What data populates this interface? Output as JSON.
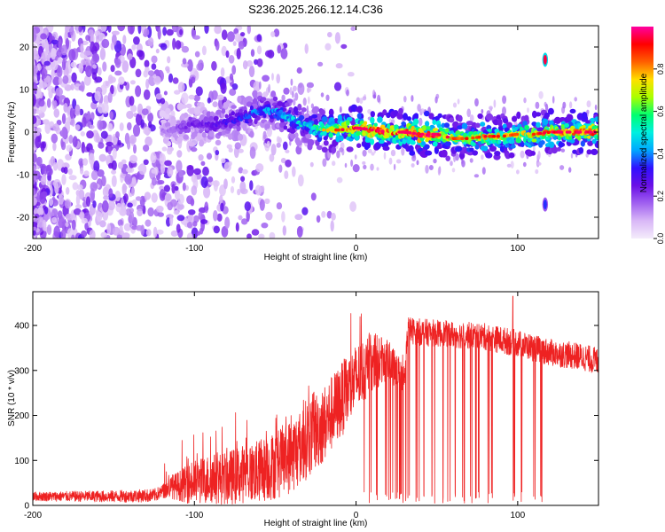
{
  "title": "S236.2025.266.12.14.C36",
  "colors": {
    "snr_line": "#ee2222",
    "colormap": [
      "#f4ecfb",
      "#d9b8f7",
      "#a060f0",
      "#6a10e6",
      "#3010ff",
      "#00a8ff",
      "#00f0e0",
      "#00ff70",
      "#aaff00",
      "#ffe000",
      "#ff6000",
      "#ff0000",
      "#ff00a0"
    ]
  },
  "chart_data": [
    {
      "type": "heatmap",
      "title": "S236.2025.266.12.14.C36",
      "xlabel": "Height of straight line (km)",
      "ylabel": "Frequency (Hz)",
      "xlim": [
        -200,
        150
      ],
      "ylim": [
        -25,
        25
      ],
      "xticks": [
        -200,
        -100,
        0,
        100
      ],
      "yticks": [
        -20,
        -10,
        0,
        10,
        20
      ],
      "colorbar": {
        "label": "Normalized spectral amplitude",
        "range": [
          0,
          1
        ],
        "ticks": [
          0.0,
          0.2,
          0.4,
          0.6,
          0.8
        ]
      },
      "ridge_frequency_hz": [
        [
          -120,
          0.0
        ],
        [
          -100,
          2.0
        ],
        [
          -90,
          1.5
        ],
        [
          -80,
          2.5
        ],
        [
          -70,
          3.5
        ],
        [
          -60,
          5.0
        ],
        [
          -50,
          5.0
        ],
        [
          -40,
          3.0
        ],
        [
          -30,
          1.5
        ],
        [
          -20,
          0.5
        ],
        [
          -10,
          0.5
        ],
        [
          0,
          1.0
        ],
        [
          10,
          0.5
        ],
        [
          20,
          0.0
        ],
        [
          30,
          0.0
        ],
        [
          40,
          -0.5
        ],
        [
          50,
          -0.5
        ],
        [
          60,
          -1.5
        ],
        [
          70,
          -1.5
        ],
        [
          80,
          -1.0
        ],
        [
          90,
          -1.0
        ],
        [
          100,
          -0.5
        ],
        [
          110,
          -0.5
        ],
        [
          120,
          0.0
        ],
        [
          130,
          0.0
        ],
        [
          150,
          0.0
        ]
      ],
      "ridge_amplitude": [
        [
          -120,
          0.15
        ],
        [
          -100,
          0.25
        ],
        [
          -80,
          0.3
        ],
        [
          -60,
          0.4
        ],
        [
          -45,
          0.45
        ],
        [
          -30,
          0.5
        ],
        [
          -15,
          0.7
        ],
        [
          0,
          0.85
        ],
        [
          15,
          0.9
        ],
        [
          30,
          0.85
        ],
        [
          45,
          0.95
        ],
        [
          60,
          0.7
        ],
        [
          80,
          0.75
        ],
        [
          100,
          0.7
        ],
        [
          120,
          0.8
        ],
        [
          150,
          0.85
        ]
      ],
      "spurious_signals": [
        {
          "x_km": 117,
          "freq_hz": 17,
          "amplitude": 0.95
        },
        {
          "x_km": 117,
          "freq_hz": -17,
          "amplitude": 0.35
        }
      ]
    },
    {
      "type": "line",
      "xlabel": "Height of straight line (km)",
      "ylabel": "SNR (10 * v/v)",
      "xlim": [
        -200,
        150
      ],
      "ylim": [
        0,
        475
      ],
      "xticks": [
        -200,
        -100,
        0,
        100
      ],
      "yticks": [
        0,
        100,
        200,
        300,
        400
      ],
      "series": [
        {
          "name": "SNR",
          "baseline": [
            [
              -200,
              20
            ],
            [
              -150,
              20
            ],
            [
              -125,
              22
            ],
            [
              -120,
              30
            ],
            [
              -115,
              40
            ],
            [
              -100,
              50
            ],
            [
              -90,
              60
            ],
            [
              -80,
              60
            ],
            [
              -70,
              70
            ],
            [
              -60,
              75
            ],
            [
              -50,
              90
            ],
            [
              -40,
              110
            ],
            [
              -30,
              150
            ],
            [
              -20,
              180
            ],
            [
              -10,
              230
            ],
            [
              0,
              280
            ],
            [
              10,
              320
            ],
            [
              20,
              320
            ],
            [
              25,
              300
            ],
            [
              30,
              280
            ],
            [
              32,
              390
            ],
            [
              40,
              385
            ],
            [
              60,
              380
            ],
            [
              80,
              375
            ],
            [
              100,
              360
            ],
            [
              120,
              340
            ],
            [
              140,
              330
            ],
            [
              150,
              320
            ]
          ],
          "noise_amplitude": [
            [
              -200,
              10
            ],
            [
              -120,
              15
            ],
            [
              -100,
              50
            ],
            [
              -60,
              70
            ],
            [
              -30,
              90
            ],
            [
              0,
              80
            ],
            [
              30,
              30
            ],
            [
              60,
              30
            ],
            [
              100,
              30
            ],
            [
              150,
              30
            ]
          ],
          "peak": [
            97,
            465
          ]
        }
      ]
    }
  ]
}
